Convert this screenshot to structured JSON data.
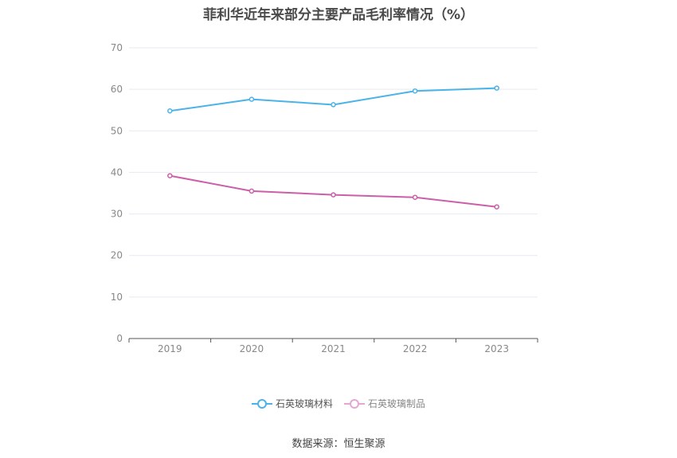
{
  "chart_data": {
    "type": "line",
    "title": "菲利华近年来部分主要产品毛利率情况（%）",
    "categories": [
      "2019",
      "2020",
      "2021",
      "2022",
      "2023"
    ],
    "ylim": [
      0,
      70
    ],
    "yticks": [
      0,
      10,
      20,
      30,
      40,
      50,
      60,
      70
    ],
    "grid": true,
    "legend_position": "bottom",
    "series": [
      {
        "name": "石英玻璃材料",
        "color": "#4ab3e8",
        "values": [
          54.8,
          57.6,
          56.3,
          59.6,
          60.3
        ]
      },
      {
        "name": "石英玻璃制品",
        "color": "#cc5fa8",
        "legend_color": "#e6a6d2",
        "values": [
          39.2,
          35.5,
          34.6,
          34.0,
          31.7
        ]
      }
    ]
  },
  "source": "数据来源：恒生聚源"
}
